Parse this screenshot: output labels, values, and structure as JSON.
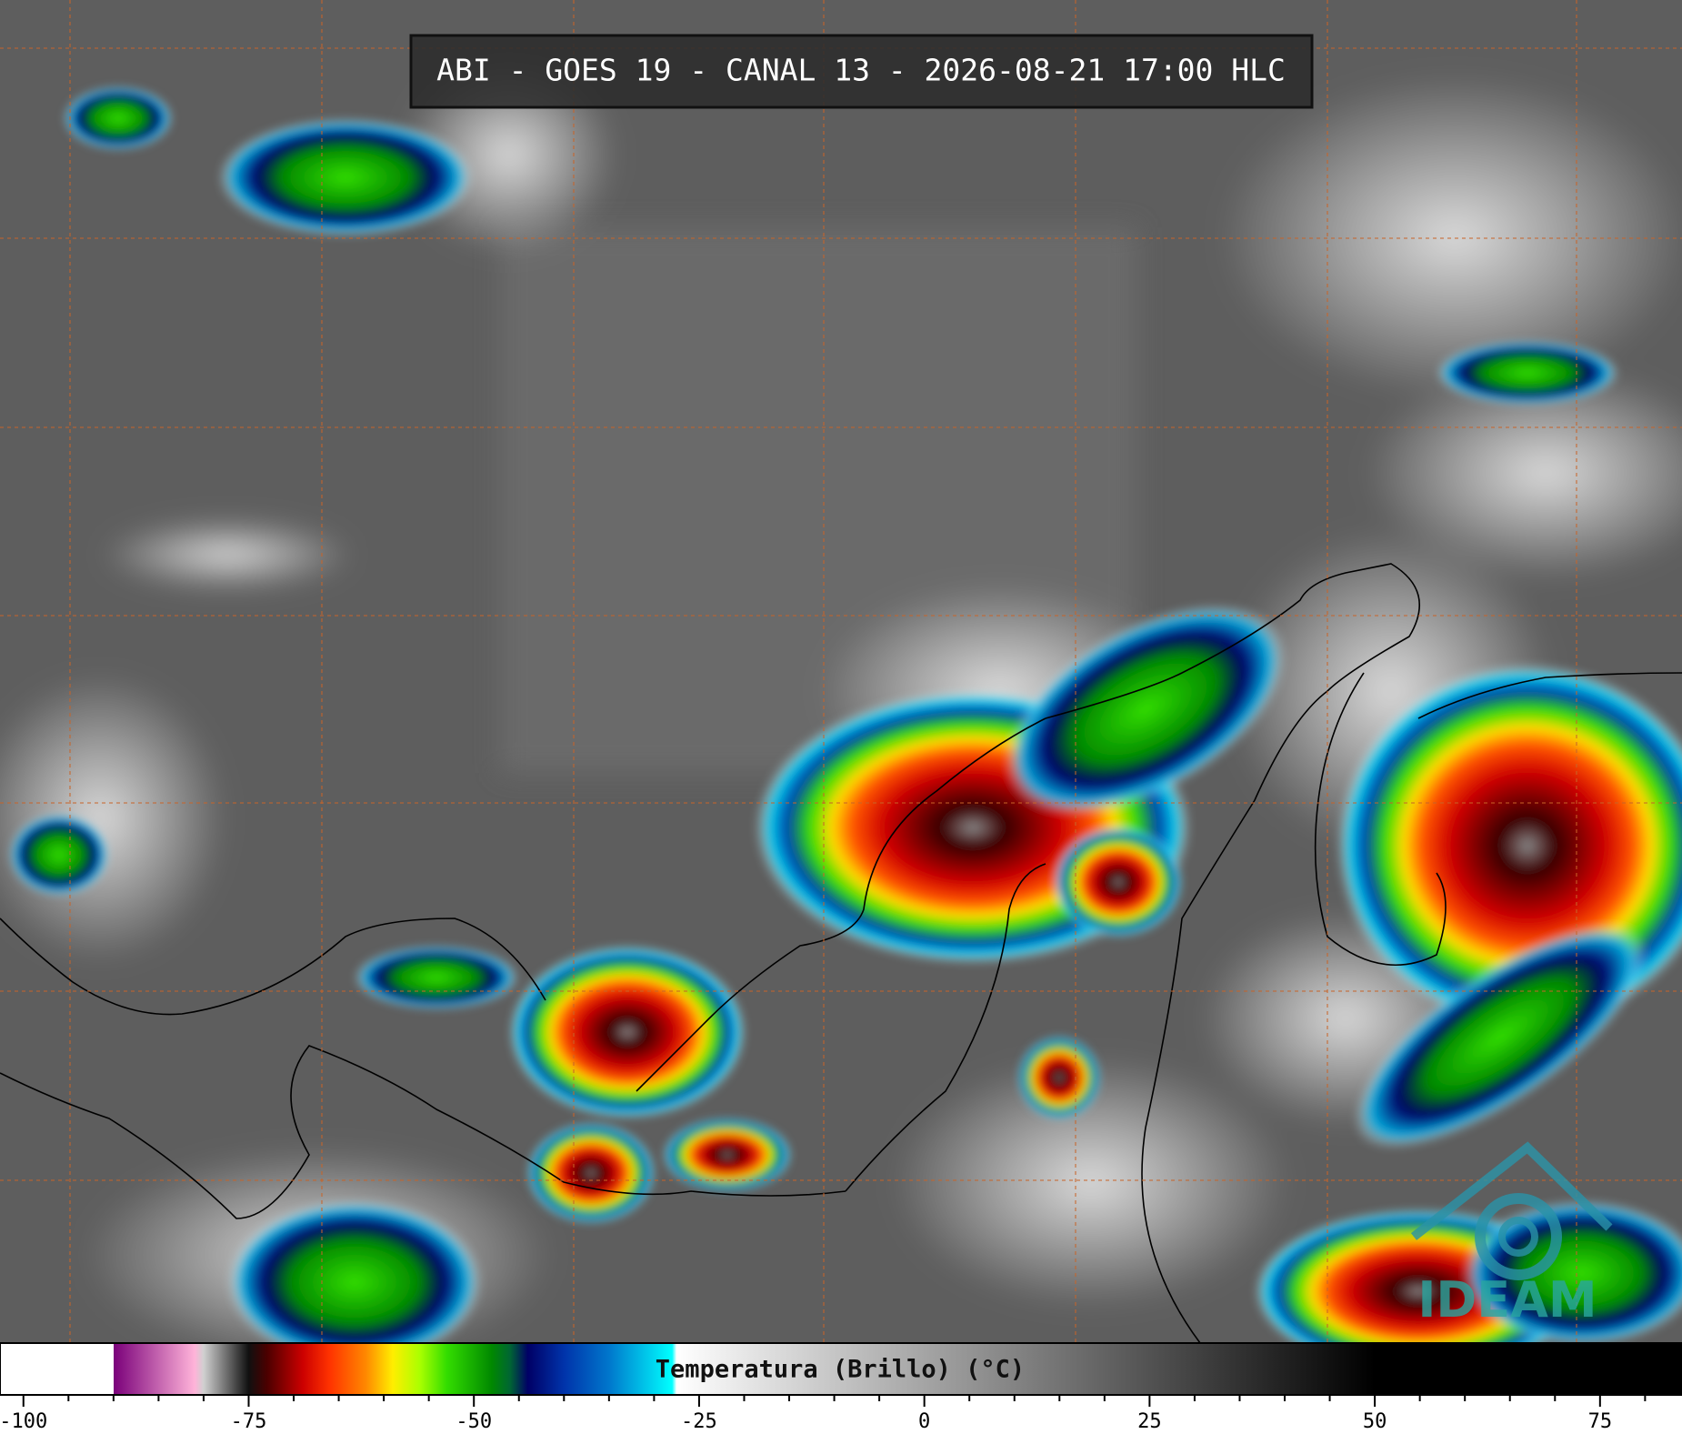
{
  "header": {
    "title": "ABI - GOES 19 - CANAL 13 - 2026-08-21 17:00 HLC"
  },
  "logo": {
    "text": "IDEAM"
  },
  "colorbar": {
    "label": "Temperatura (Brillo) (°C)",
    "xlim": [
      -102.6,
      84.1
    ],
    "xticks": [
      -100,
      -75,
      -50,
      -25,
      0,
      25,
      50,
      75
    ],
    "minor_xticks": [
      -95,
      -90,
      -85,
      -80,
      -70,
      -65,
      -60,
      -55,
      -45,
      -40,
      -35,
      -30,
      -20,
      -15,
      -10,
      -5,
      5,
      10,
      15,
      20,
      30,
      35,
      40,
      45,
      55,
      60,
      65,
      70,
      80
    ],
    "colormap": [
      {
        "value": -90,
        "color": "#ffffff"
      },
      {
        "value": -90,
        "color": "#7a007a"
      },
      {
        "value": -81,
        "color": "#ffb3d9"
      },
      {
        "value": -80,
        "color": "#d0d0d0"
      },
      {
        "value": -75,
        "color": "#101010"
      },
      {
        "value": -73,
        "color": "#4a0000"
      },
      {
        "value": -69,
        "color": "#cc0000"
      },
      {
        "value": -66,
        "color": "#ff3300"
      },
      {
        "value": -62,
        "color": "#ff8800"
      },
      {
        "value": -59,
        "color": "#ffee00"
      },
      {
        "value": -56,
        "color": "#aaff00"
      },
      {
        "value": -53,
        "color": "#33dd00"
      },
      {
        "value": -48,
        "color": "#008800"
      },
      {
        "value": -46,
        "color": "#006633"
      },
      {
        "value": -44,
        "color": "#000066"
      },
      {
        "value": -40,
        "color": "#0033aa"
      },
      {
        "value": -35,
        "color": "#0077cc"
      },
      {
        "value": -28,
        "color": "#00ffff"
      },
      {
        "value": -27.5,
        "color": "#ffffff"
      },
      {
        "value": 50,
        "color": "#000000"
      }
    ]
  }
}
